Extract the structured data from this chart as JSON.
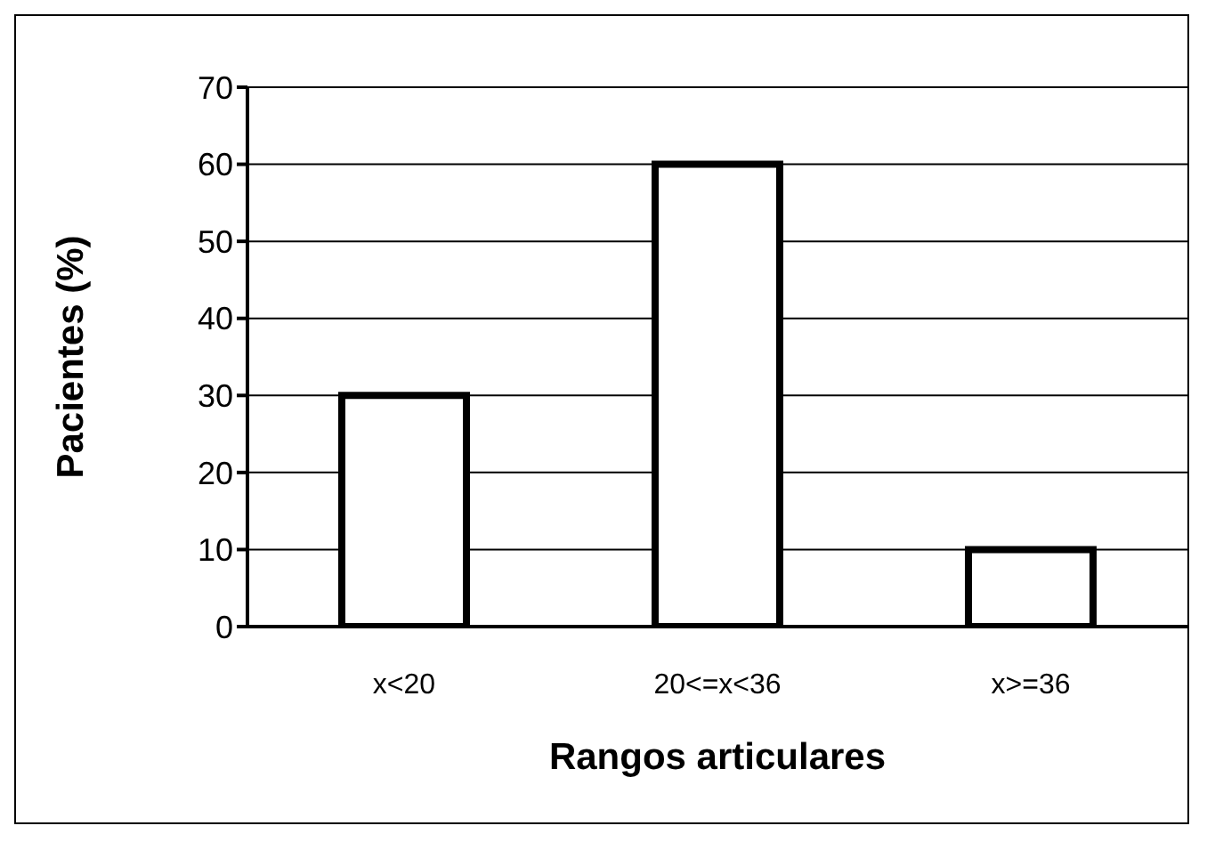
{
  "chart_data": {
    "type": "bar",
    "xlabel": "Rangos articulares",
    "ylabel": "Pacientes (%)",
    "categories": [
      "x<20",
      "20<=x<36",
      "x>=36"
    ],
    "values": [
      30,
      60,
      10
    ],
    "color": "#ffffff",
    "ylim": [
      0,
      70
    ],
    "yticks": [
      0,
      10,
      20,
      30,
      40,
      50,
      60,
      70
    ],
    "grid": "y",
    "legend": false
  }
}
